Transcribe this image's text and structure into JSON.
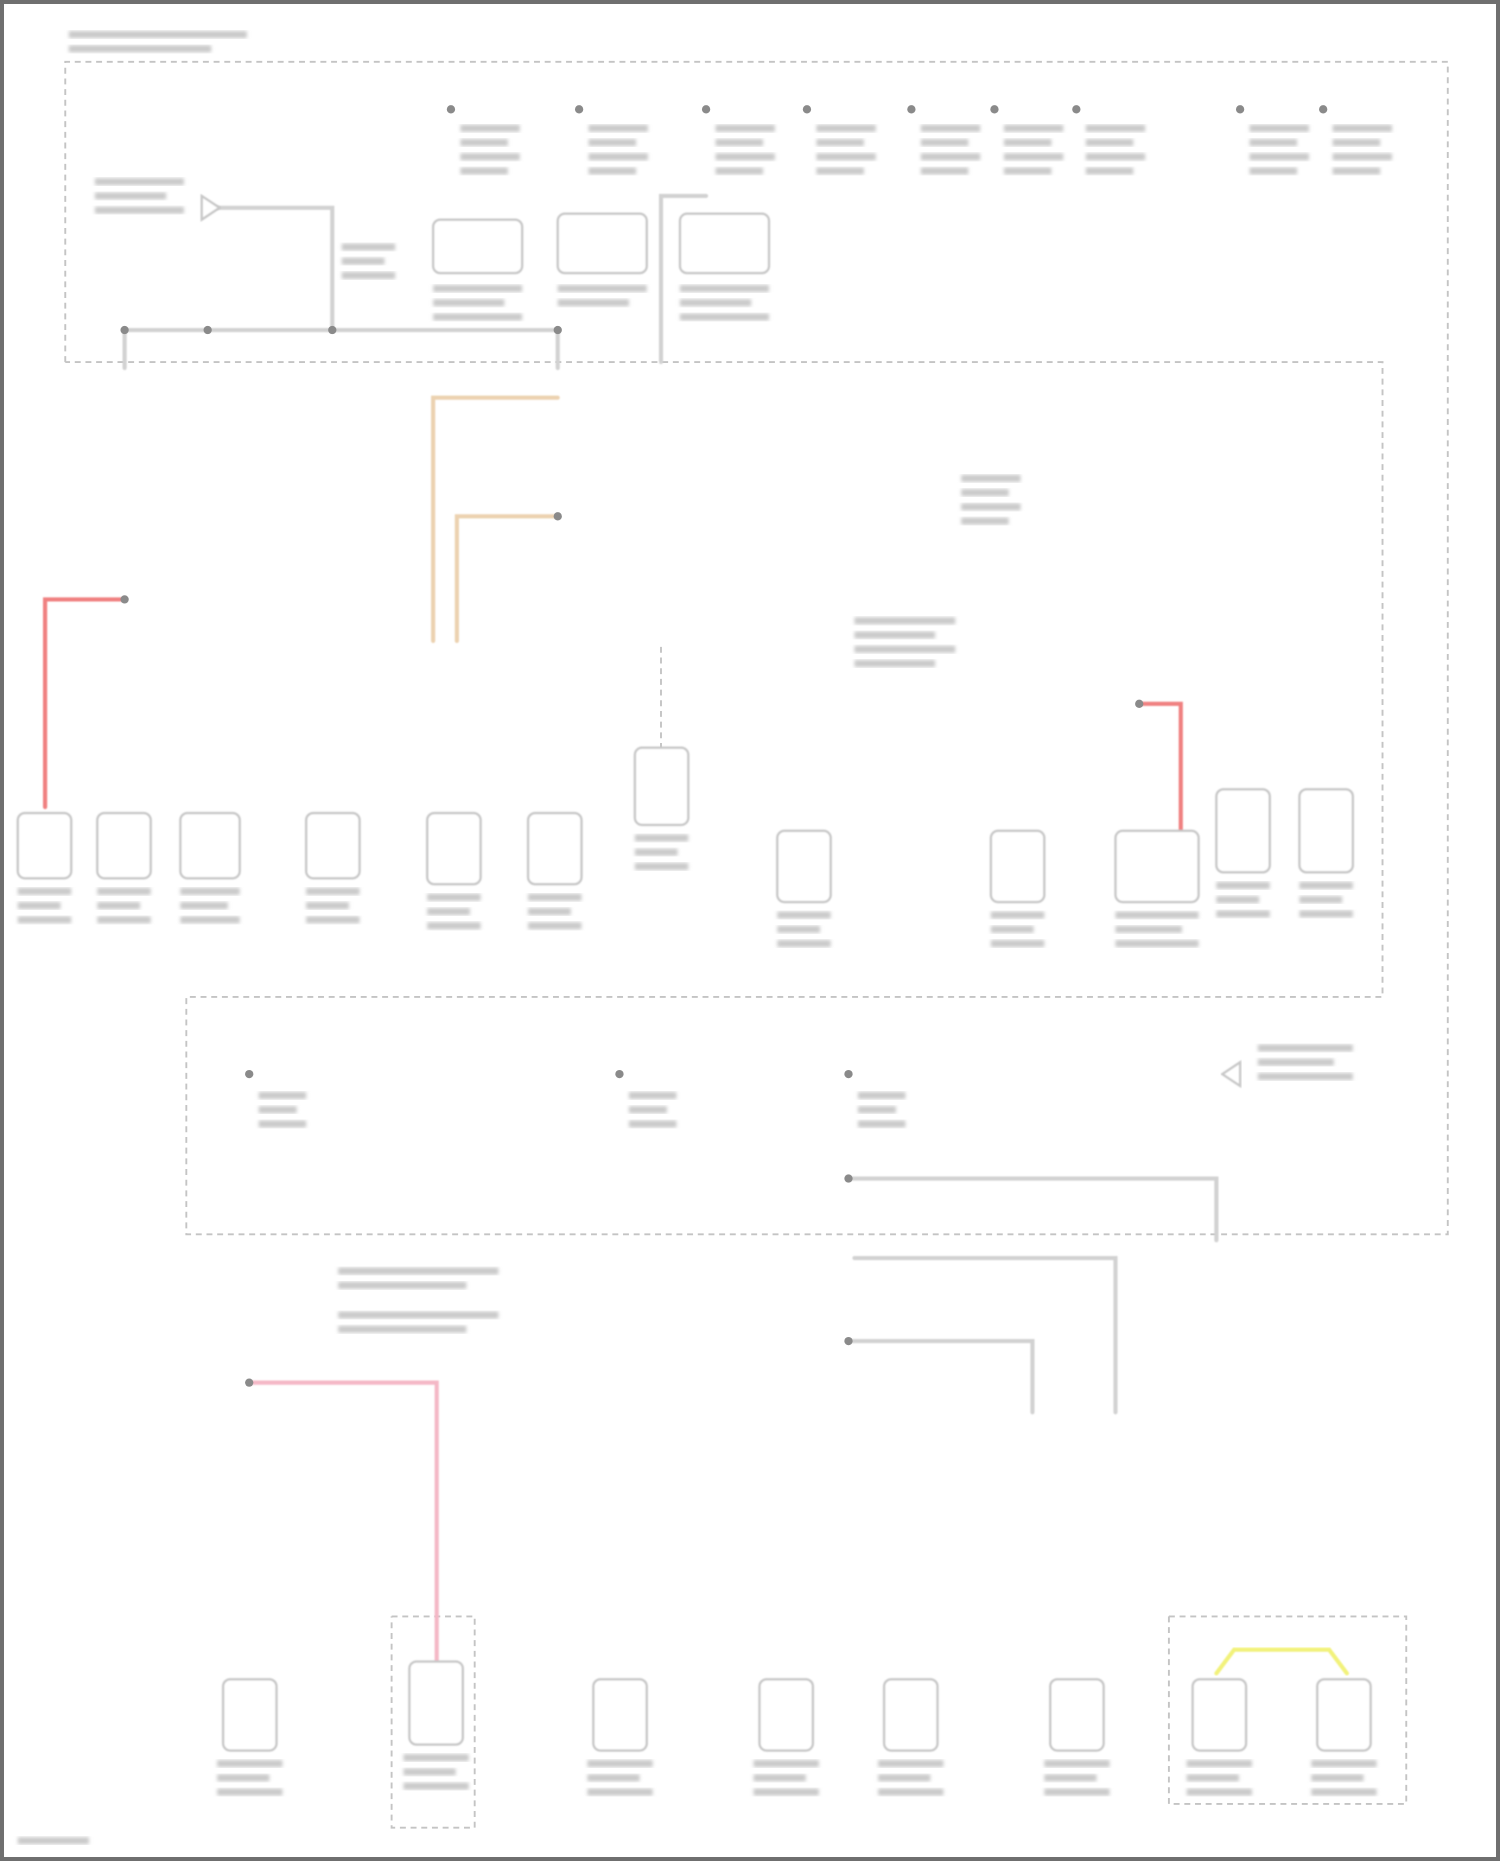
{
  "colors": {
    "frame": "#6f6f6f",
    "wire_default": "#d2d2d2",
    "red": "#f08080",
    "pink": "#f4b8c6",
    "blue": "#8c8cf0",
    "green": "#a6dc8c",
    "yellow": "#f2f27a",
    "tan": "#ecd2b0",
    "olive": "#c8c8a0",
    "gray": "#9a9a9a",
    "orange": "#f5c08a"
  }
}
